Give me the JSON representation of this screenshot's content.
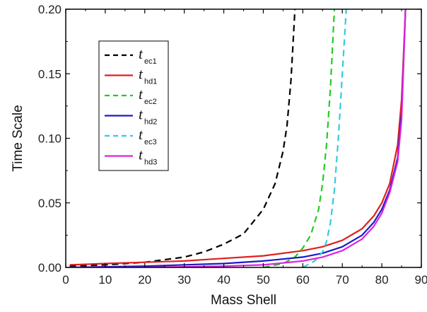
{
  "chart_data": {
    "type": "line",
    "xlabel": "Mass Shell",
    "ylabel": "Time Scale",
    "xlim": [
      0,
      90
    ],
    "ylim": [
      0,
      0.2
    ],
    "xticks": [
      0,
      10,
      20,
      30,
      40,
      50,
      60,
      70,
      80,
      90
    ],
    "yticks": [
      0,
      0.05,
      0.1,
      0.15,
      0.2
    ],
    "xtick_labels": [
      "0",
      "10",
      "20",
      "30",
      "40",
      "50",
      "60",
      "70",
      "80",
      "90"
    ],
    "ytick_labels": [
      "0.00",
      "0.05",
      "0.10",
      "0.15",
      "0.20"
    ],
    "grid": false,
    "legend_position": "top-left",
    "series": [
      {
        "name": "tec1",
        "label_main": "t",
        "label_sub": "ec1",
        "color": "#000000",
        "dash": "dashed",
        "x": [
          1,
          10,
          20,
          30,
          35,
          40,
          45,
          50,
          53,
          55,
          56,
          57,
          58
        ],
        "y": [
          0.001,
          0.002,
          0.004,
          0.008,
          0.012,
          0.018,
          0.026,
          0.045,
          0.065,
          0.09,
          0.11,
          0.145,
          0.2
        ]
      },
      {
        "name": "thd1",
        "label_main": "t",
        "label_sub": "hd1",
        "color": "#e0201b",
        "dash": "solid",
        "x": [
          1,
          10,
          20,
          30,
          40,
          50,
          60,
          65,
          70,
          75,
          78,
          80,
          82,
          84,
          85,
          86
        ],
        "y": [
          0.002,
          0.003,
          0.004,
          0.005,
          0.007,
          0.009,
          0.013,
          0.016,
          0.021,
          0.03,
          0.04,
          0.05,
          0.065,
          0.095,
          0.13,
          0.2
        ]
      },
      {
        "name": "tec2",
        "label_main": "t",
        "label_sub": "ec2",
        "color": "#22cc22",
        "dash": "dashed",
        "x": [
          50,
          55,
          58,
          60,
          62,
          64,
          65,
          66,
          67,
          68
        ],
        "y": [
          0.0,
          0.003,
          0.008,
          0.015,
          0.025,
          0.045,
          0.065,
          0.095,
          0.14,
          0.2
        ]
      },
      {
        "name": "thd2",
        "label_main": "t",
        "label_sub": "hd2",
        "color": "#1a1acc",
        "dash": "solid",
        "x": [
          1,
          20,
          40,
          50,
          60,
          65,
          70,
          75,
          78,
          80,
          82,
          84,
          85,
          86
        ],
        "y": [
          0.0,
          0.001,
          0.003,
          0.005,
          0.008,
          0.011,
          0.016,
          0.025,
          0.035,
          0.045,
          0.06,
          0.085,
          0.12,
          0.2
        ]
      },
      {
        "name": "tec3",
        "label_main": "t",
        "label_sub": "ec3",
        "color": "#33ccdd",
        "dash": "dashed",
        "x": [
          60,
          63,
          65,
          66,
          67,
          68,
          69,
          70,
          71
        ],
        "y": [
          0.0,
          0.005,
          0.012,
          0.02,
          0.035,
          0.06,
          0.1,
          0.15,
          0.2
        ]
      },
      {
        "name": "thd3",
        "label_main": "t",
        "label_sub": "hd3",
        "color": "#dd22dd",
        "dash": "solid",
        "x": [
          1,
          20,
          40,
          50,
          60,
          65,
          70,
          75,
          78,
          80,
          82,
          84,
          85,
          86
        ],
        "y": [
          0.0,
          0.0,
          0.001,
          0.002,
          0.005,
          0.008,
          0.013,
          0.022,
          0.032,
          0.042,
          0.058,
          0.082,
          0.115,
          0.2
        ]
      }
    ]
  }
}
